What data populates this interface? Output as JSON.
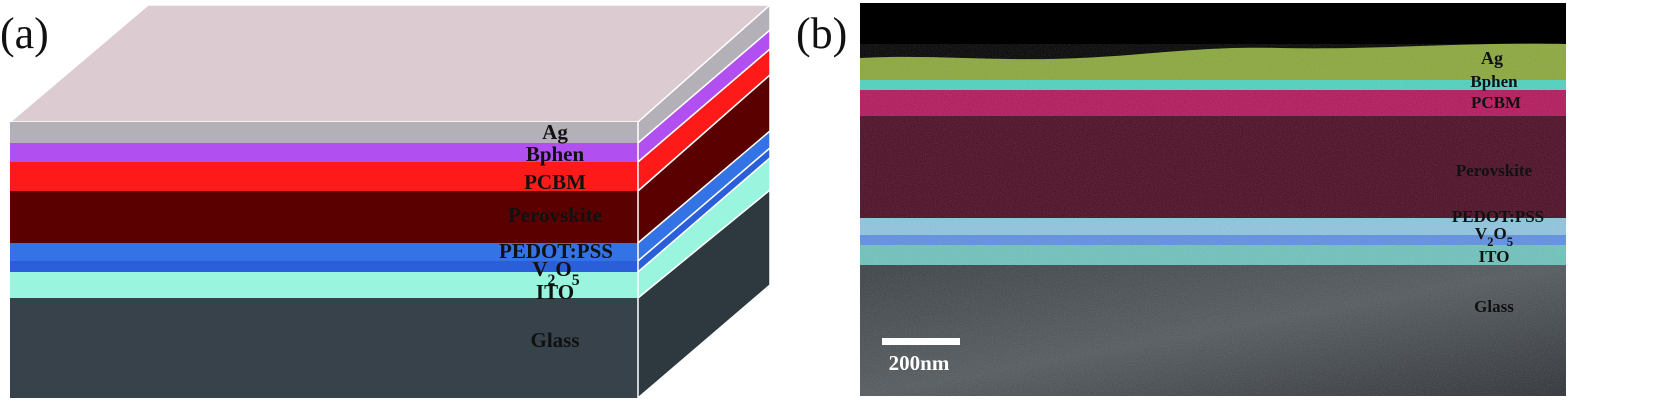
{
  "panel_a": {
    "label": "(a)",
    "layers": [
      {
        "name": "Ag",
        "color": "#b3b0b8"
      },
      {
        "name": "Bphen",
        "color": "#b14ff0"
      },
      {
        "name": "PCBM",
        "color": "#ff1a1a"
      },
      {
        "name": "Perovskite",
        "color": "#5a0000"
      },
      {
        "name": "PEDOT:PSS",
        "color": "#3373e6"
      },
      {
        "name": "V2O5",
        "color": "#2a5fd9",
        "sub": [
          "2",
          "5"
        ]
      },
      {
        "name": "ITO",
        "color": "#99f5dd"
      },
      {
        "name": "Glass",
        "color": "#37424a"
      }
    ],
    "top_face_color": "#dccbd0"
  },
  "panel_b": {
    "label": "(b)",
    "layers": [
      {
        "name": "Ag"
      },
      {
        "name": "Bphen"
      },
      {
        "name": "PCBM"
      },
      {
        "name": "Perovskite"
      },
      {
        "name": "PEDOT:PSS"
      },
      {
        "name": "V2O5"
      },
      {
        "name": "ITO"
      },
      {
        "name": "Glass"
      }
    ],
    "scale_bar": "200nm"
  }
}
